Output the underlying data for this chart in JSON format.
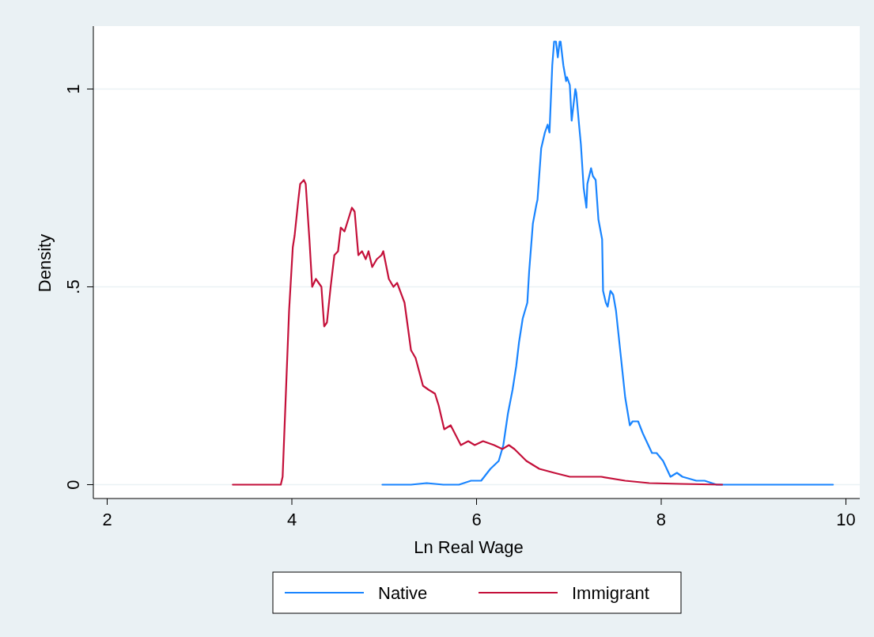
{
  "chart_data": {
    "type": "line",
    "xlabel": "Ln Real Wage",
    "ylabel": "Density",
    "xlim": [
      1.85,
      10.15
    ],
    "ylim": [
      -0.035,
      1.155
    ],
    "xticks": [
      2,
      4,
      6,
      8,
      10
    ],
    "yticks": [
      0,
      {
        "value": 0.5,
        "label": ".5"
      },
      1
    ],
    "grid": "y",
    "legend": "bottom",
    "line_style": "solid",
    "marker": "none",
    "series": [
      {
        "name": "Native",
        "color": "#1a85ff",
        "x": [
          4.98,
          5.29,
          5.46,
          5.64,
          5.81,
          5.94,
          6.05,
          6.15,
          6.24,
          6.29,
          6.34,
          6.39,
          6.43,
          6.46,
          6.5,
          6.55,
          6.57,
          6.61,
          6.65,
          6.66,
          6.7,
          6.74,
          6.77,
          6.79,
          6.82,
          6.84,
          6.86,
          6.88,
          6.9,
          6.91,
          6.94,
          6.97,
          6.98,
          7.01,
          7.03,
          7.05,
          7.07,
          7.08,
          7.11,
          7.13,
          7.16,
          7.19,
          7.2,
          7.24,
          7.26,
          7.29,
          7.32,
          7.36,
          7.37,
          7.4,
          7.42,
          7.45,
          7.48,
          7.51,
          7.56,
          7.61,
          7.66,
          7.69,
          7.75,
          7.8,
          7.84,
          7.9,
          7.95,
          8.02,
          8.1,
          8.17,
          8.23,
          8.38,
          8.47,
          8.6,
          8.98,
          9.41,
          9.86
        ],
        "values": [
          0,
          0,
          0.004,
          0,
          0,
          0.01,
          0.01,
          0.04,
          0.06,
          0.1,
          0.18,
          0.24,
          0.3,
          0.36,
          0.42,
          0.46,
          0.54,
          0.66,
          0.71,
          0.72,
          0.85,
          0.89,
          0.91,
          0.89,
          1.06,
          1.12,
          1.12,
          1.08,
          1.12,
          1.12,
          1.06,
          1.02,
          1.03,
          1.01,
          0.92,
          0.96,
          1,
          0.99,
          0.91,
          0.86,
          0.75,
          0.7,
          0.76,
          0.8,
          0.78,
          0.77,
          0.67,
          0.62,
          0.49,
          0.46,
          0.45,
          0.49,
          0.48,
          0.44,
          0.33,
          0.22,
          0.15,
          0.16,
          0.16,
          0.13,
          0.11,
          0.08,
          0.08,
          0.06,
          0.02,
          0.03,
          0.02,
          0.01,
          0.01,
          0,
          0,
          0,
          0
        ]
      },
      {
        "name": "Immigrant",
        "color": "#c4103a",
        "x": [
          3.36,
          3.88,
          3.9,
          3.94,
          3.97,
          4.01,
          4.03,
          4.07,
          4.09,
          4.13,
          4.15,
          4.19,
          4.22,
          4.26,
          4.29,
          4.32,
          4.35,
          4.38,
          4.42,
          4.46,
          4.5,
          4.53,
          4.57,
          4.61,
          4.65,
          4.68,
          4.72,
          4.76,
          4.8,
          4.83,
          4.87,
          4.92,
          4.97,
          4.99,
          5.05,
          5.1,
          5.14,
          5.22,
          5.29,
          5.34,
          5.42,
          5.48,
          5.55,
          5.59,
          5.65,
          5.72,
          5.83,
          5.91,
          5.98,
          6.07,
          6.19,
          6.28,
          6.35,
          6.41,
          6.54,
          6.68,
          6.84,
          7.01,
          7.18,
          7.35,
          7.61,
          7.87,
          8.21,
          8.66
        ],
        "values": [
          0,
          0,
          0.02,
          0.26,
          0.44,
          0.6,
          0.63,
          0.72,
          0.76,
          0.77,
          0.76,
          0.62,
          0.5,
          0.52,
          0.51,
          0.5,
          0.4,
          0.41,
          0.5,
          0.58,
          0.59,
          0.65,
          0.64,
          0.67,
          0.7,
          0.69,
          0.58,
          0.59,
          0.57,
          0.59,
          0.55,
          0.57,
          0.58,
          0.59,
          0.52,
          0.5,
          0.51,
          0.46,
          0.34,
          0.32,
          0.25,
          0.24,
          0.23,
          0.2,
          0.14,
          0.15,
          0.1,
          0.11,
          0.1,
          0.11,
          0.1,
          0.09,
          0.1,
          0.09,
          0.06,
          0.04,
          0.03,
          0.02,
          0.02,
          0.02,
          0.01,
          0.004,
          0.002,
          0
        ]
      }
    ]
  }
}
